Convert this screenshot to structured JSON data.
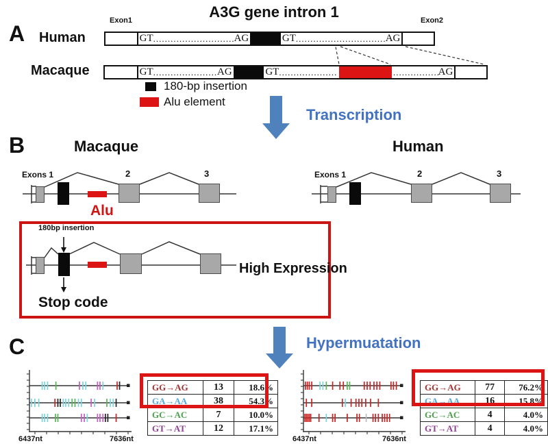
{
  "panelA": {
    "panel_label": "A",
    "title": "A3G gene intron 1",
    "exon1_label": "Exon1",
    "exon2_label": "Exon2",
    "human_label": "Human",
    "macaque_label": "Macaque",
    "splice_donor": "GT",
    "splice_acceptor": "AG",
    "dots": "................................................................",
    "legend": {
      "insertion": "180-bp insertion",
      "alu": "Alu element"
    },
    "transcription_label": "Transcription"
  },
  "panelB": {
    "panel_label": "B",
    "macaque_title": "Macaque",
    "human_title": "Human",
    "exons_label": "Exons 1",
    "exon2_number": "2",
    "exon3_number": "3",
    "alu_label": "Alu",
    "insertion_label": "180bp insertion",
    "stop_label": "Stop code",
    "high_expression_label": "High Expression",
    "hypermutation_label": "Hypermuatation"
  },
  "panelC": {
    "panel_label": "C",
    "axis_start": "6437nt",
    "axis_end": "7636nt",
    "mutation_colors": [
      "#a83232",
      "#56a8d8",
      "#4ba04b",
      "#8e4291"
    ],
    "left_table": {
      "rows": [
        [
          "GG→AG",
          "13",
          "18.6%"
        ],
        [
          "GA→AA",
          "38",
          "54.3%"
        ],
        [
          "GC→AC",
          "7",
          "10.0%"
        ],
        [
          "GT→AT",
          "12",
          "17.1%"
        ]
      ]
    },
    "right_table": {
      "rows": [
        [
          "GG→AG",
          "77",
          "76.2%"
        ],
        [
          "GA→AA",
          "16",
          "15.8%"
        ],
        [
          "GC→AC",
          "4",
          "4.0%"
        ],
        [
          "GT→AT",
          "4",
          "4.0%"
        ]
      ]
    },
    "tick_colors": {
      "r": "#cc2222",
      "c": "#7ad4da",
      "g": "#55b855",
      "m": "#c85ac8",
      "k": "#222222",
      "y": "#bbbbbb"
    },
    "plots": {
      "left": {
        "rows": [
          [
            [
              0.13,
              "c"
            ],
            [
              0.155,
              "c"
            ],
            [
              0.185,
              "c"
            ],
            [
              0.27,
              "g"
            ],
            [
              0.51,
              "m"
            ],
            [
              0.545,
              "c"
            ],
            [
              0.575,
              "c"
            ],
            [
              0.695,
              "m"
            ],
            [
              0.72,
              "m"
            ],
            [
              0.75,
              "c"
            ],
            [
              0.895,
              "r"
            ],
            [
              0.92,
              "k"
            ]
          ],
          [
            [
              0.02,
              "c"
            ],
            [
              0.055,
              "c"
            ],
            [
              0.095,
              "c"
            ],
            [
              0.26,
              "r"
            ],
            [
              0.29,
              "k"
            ],
            [
              0.315,
              "k"
            ],
            [
              0.345,
              "c"
            ],
            [
              0.37,
              "c"
            ],
            [
              0.4,
              "c"
            ],
            [
              0.435,
              "g"
            ],
            [
              0.465,
              "g"
            ],
            [
              0.5,
              "c"
            ],
            [
              0.53,
              "c"
            ],
            [
              0.63,
              "m"
            ],
            [
              0.665,
              "c"
            ],
            [
              0.79,
              "g"
            ],
            [
              0.825,
              "c"
            ],
            [
              0.855,
              "c"
            ],
            [
              0.885,
              "k"
            ]
          ],
          [
            [
              0.13,
              "c"
            ],
            [
              0.155,
              "c"
            ],
            [
              0.185,
              "c"
            ],
            [
              0.265,
              "g"
            ],
            [
              0.29,
              "g"
            ],
            [
              0.53,
              "m"
            ],
            [
              0.56,
              "m"
            ],
            [
              0.59,
              "c"
            ],
            [
              0.695,
              "m"
            ],
            [
              0.72,
              "m"
            ],
            [
              0.75,
              "m"
            ],
            [
              0.775,
              "k"
            ],
            [
              0.8,
              "k"
            ],
            [
              0.885,
              "r"
            ]
          ]
        ]
      },
      "right": {
        "rows": [
          [
            [
              0.02,
              "r"
            ],
            [
              0.04,
              "r"
            ],
            [
              0.06,
              "r"
            ],
            [
              0.085,
              "r"
            ],
            [
              0.17,
              "c"
            ],
            [
              0.2,
              "c"
            ],
            [
              0.235,
              "g"
            ],
            [
              0.3,
              "r"
            ],
            [
              0.375,
              "r"
            ],
            [
              0.41,
              "r"
            ],
            [
              0.45,
              "g"
            ],
            [
              0.475,
              "g"
            ],
            [
              0.625,
              "r"
            ],
            [
              0.655,
              "r"
            ],
            [
              0.685,
              "r"
            ],
            [
              0.725,
              "r"
            ],
            [
              0.755,
              "r"
            ],
            [
              0.785,
              "r"
            ],
            [
              0.9,
              "r"
            ],
            [
              0.925,
              "r"
            ],
            [
              0.955,
              "r"
            ]
          ],
          [
            [
              0.03,
              "r"
            ],
            [
              0.085,
              "r"
            ],
            [
              0.4,
              "r"
            ],
            [
              0.43,
              "c"
            ],
            [
              0.49,
              "r"
            ],
            [
              0.54,
              "r"
            ],
            [
              0.57,
              "r"
            ],
            [
              0.6,
              "r"
            ],
            [
              0.64,
              "r"
            ],
            [
              0.69,
              "r"
            ],
            [
              0.77,
              "r"
            ]
          ],
          [
            [
              0.015,
              "r"
            ],
            [
              0.03,
              "r"
            ],
            [
              0.045,
              "r"
            ],
            [
              0.06,
              "r"
            ],
            [
              0.075,
              "r"
            ],
            [
              0.16,
              "r"
            ],
            [
              0.235,
              "c"
            ],
            [
              0.3,
              "r"
            ],
            [
              0.325,
              "r"
            ],
            [
              0.45,
              "r"
            ],
            [
              0.55,
              "r"
            ],
            [
              0.575,
              "r"
            ],
            [
              0.645,
              "y"
            ],
            [
              0.715,
              "r"
            ],
            [
              0.74,
              "r"
            ],
            [
              0.77,
              "r"
            ],
            [
              0.81,
              "r"
            ],
            [
              0.835,
              "r"
            ],
            [
              0.86,
              "r"
            ],
            [
              0.885,
              "r"
            ]
          ]
        ]
      }
    }
  },
  "colors": {
    "accent_blue": "#4f81bd",
    "highlight_red": "#dd1414"
  }
}
